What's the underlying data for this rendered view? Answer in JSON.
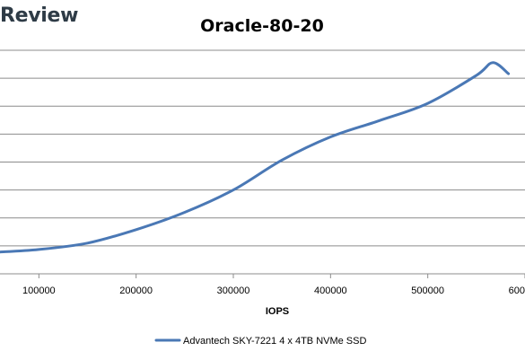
{
  "watermark": {
    "text": "Review"
  },
  "chart_data": {
    "type": "line",
    "title": "Oracle-80-20",
    "xlabel": "IOPS",
    "ylabel": "",
    "xlim": [
      60000,
      600000
    ],
    "x_ticks": [
      100000,
      200000,
      300000,
      400000,
      500000,
      600000
    ],
    "x_tick_labels": [
      "100000",
      "200000",
      "300000",
      "400000",
      "500000",
      "600000"
    ],
    "grid": true,
    "legend": "bottom",
    "colors": {
      "series": "#4a78b5",
      "grid": "#8c8c8c",
      "axis": "#8c8c8c"
    },
    "series": [
      {
        "name": "Advantech SKY-7221 4 x 4TB NVMe SSD",
        "points": [
          [
            60000,
            0.78
          ],
          [
            100000,
            0.87
          ],
          [
            150000,
            1.1
          ],
          [
            200000,
            1.58
          ],
          [
            250000,
            2.2
          ],
          [
            300000,
            3.0
          ],
          [
            350000,
            4.07
          ],
          [
            400000,
            4.9
          ],
          [
            450000,
            5.48
          ],
          [
            500000,
            6.1
          ],
          [
            550000,
            7.1
          ],
          [
            567000,
            7.56
          ],
          [
            583000,
            7.16
          ]
        ]
      }
    ]
  }
}
